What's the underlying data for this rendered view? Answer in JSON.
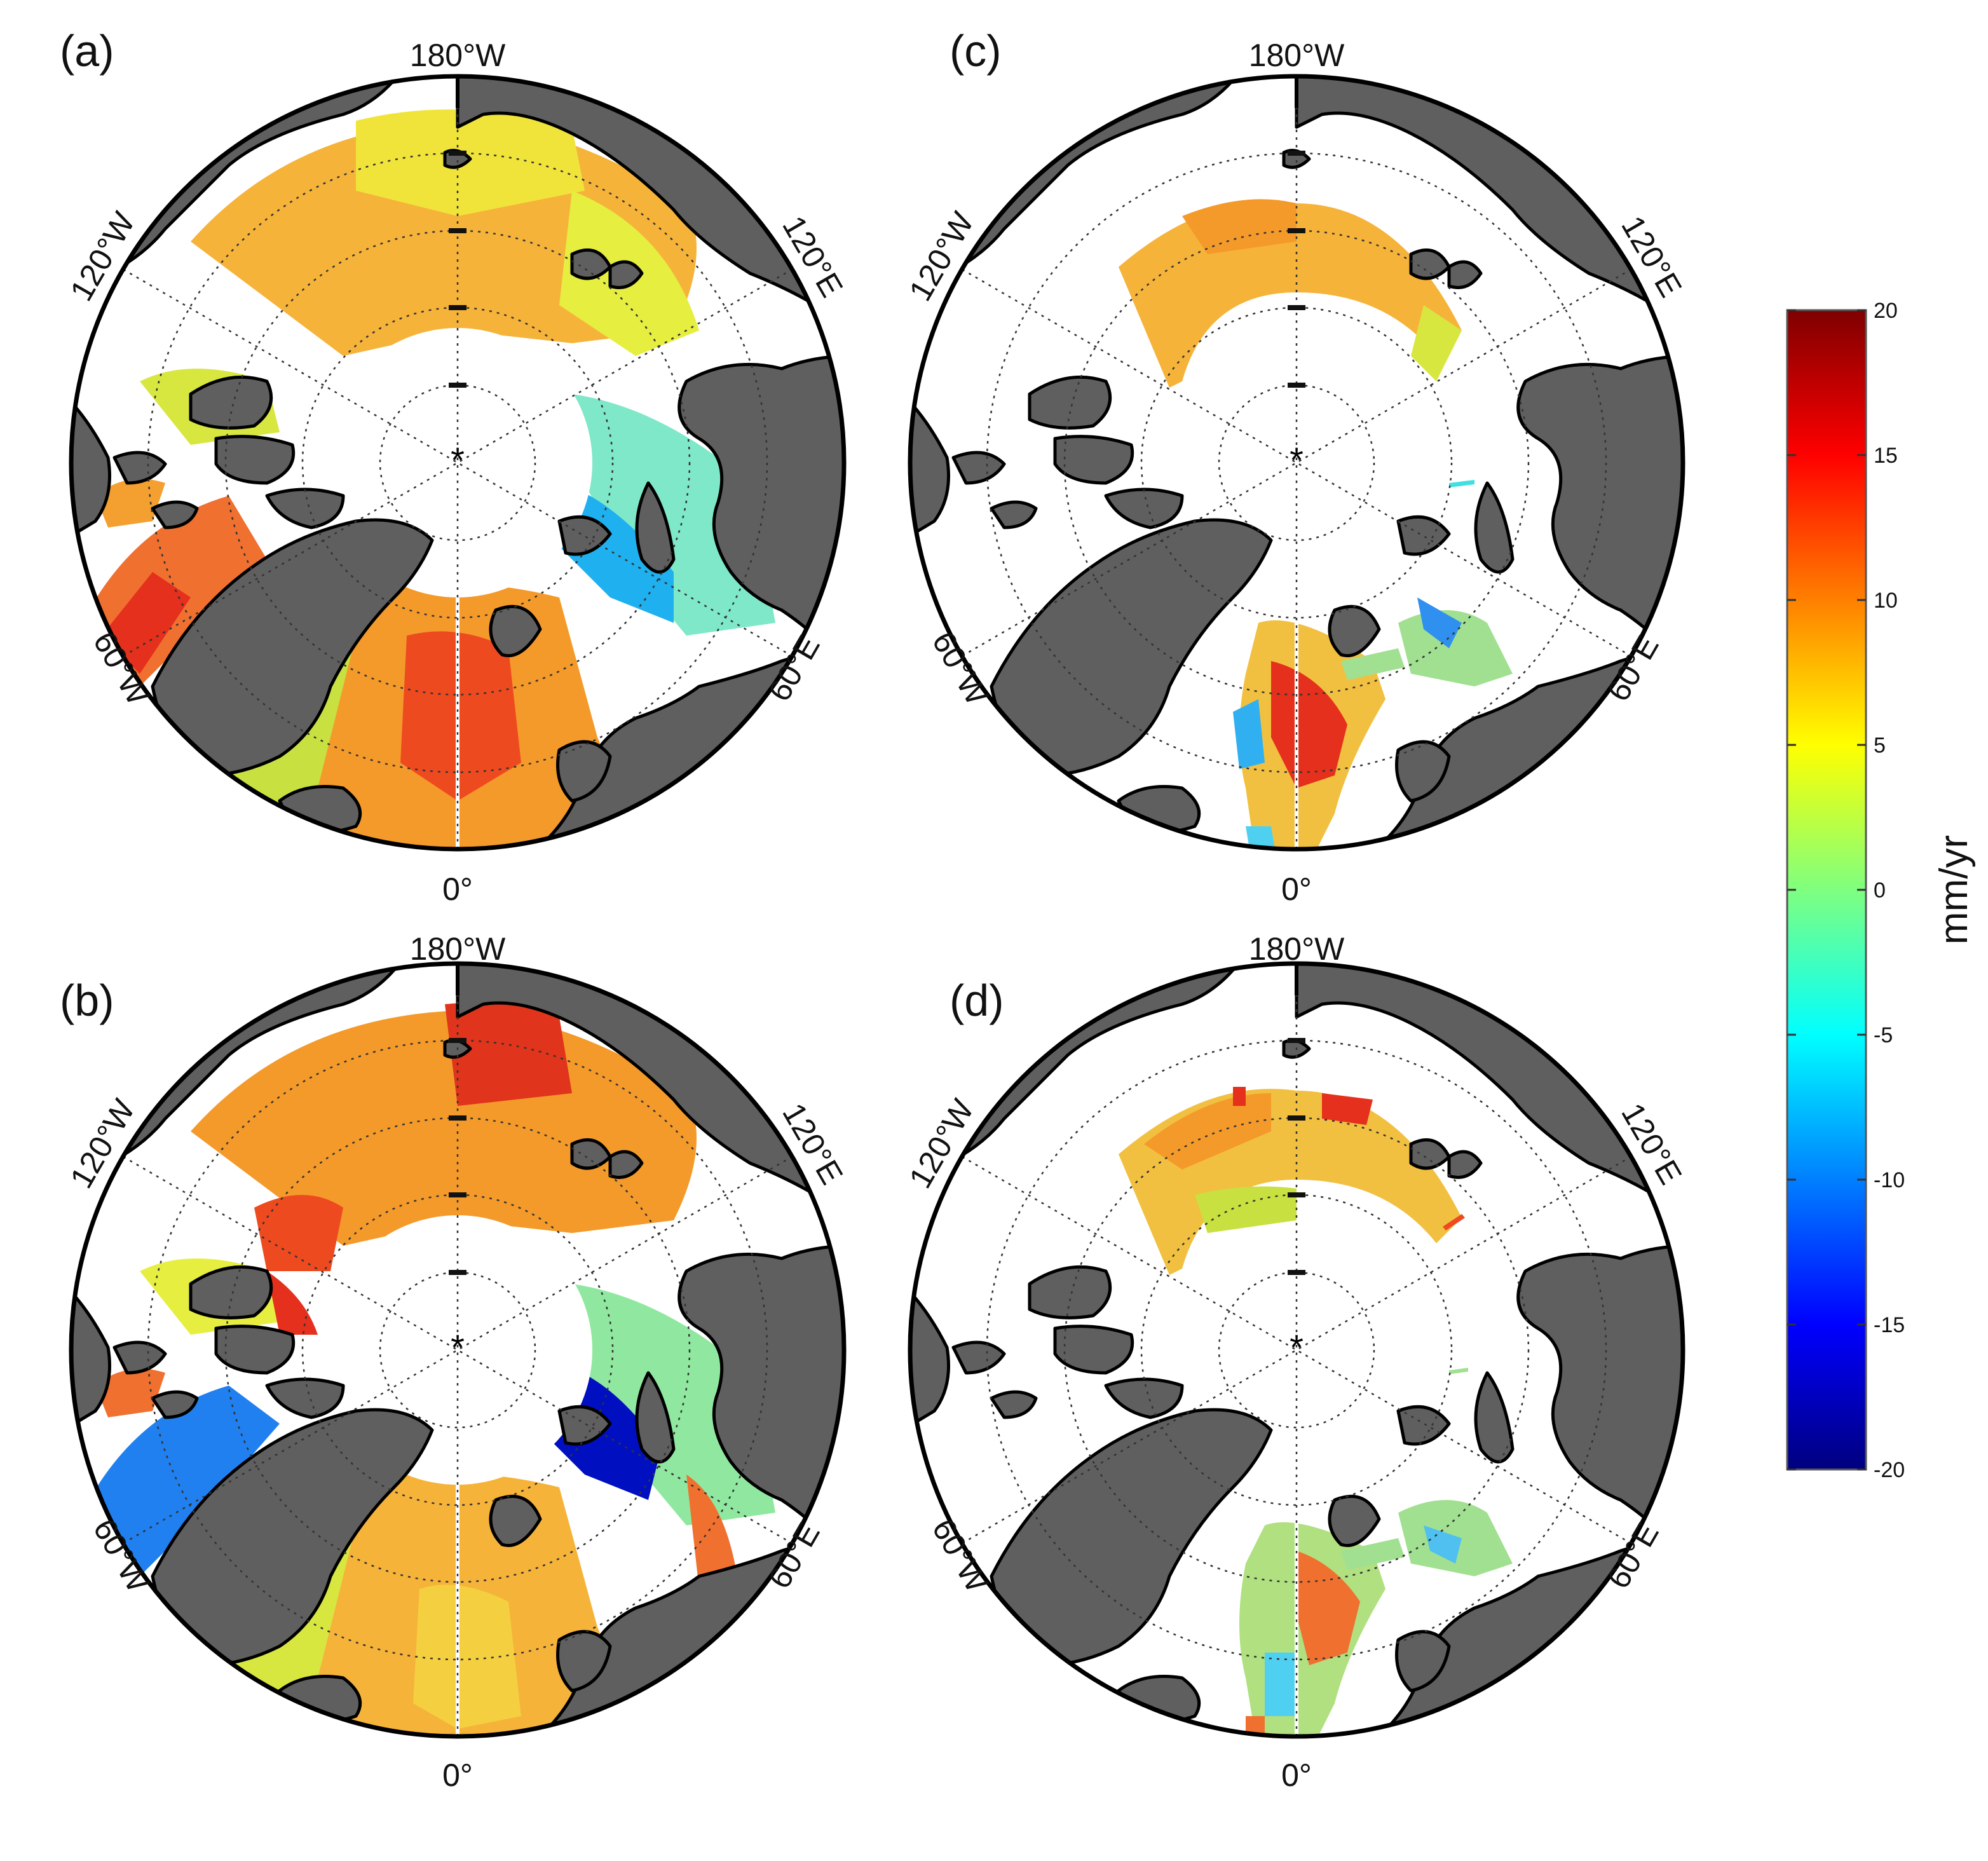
{
  "panels": [
    {
      "id": "a",
      "label": "(a)",
      "pole": "*",
      "lon_labels": {
        "top": "180°W",
        "bottom": "0°",
        "upper_left": "120°W",
        "upper_right": "120°E",
        "lower_left": "60°W",
        "lower_right": "60°E"
      }
    },
    {
      "id": "b",
      "label": "(b)",
      "pole": "*",
      "lon_labels": {
        "top": "180°W",
        "bottom": "0°",
        "upper_left": "120°W",
        "upper_right": "120°E",
        "lower_left": "60°W",
        "lower_right": "60°E"
      }
    },
    {
      "id": "c",
      "label": "(c)",
      "pole": "*",
      "lon_labels": {
        "top": "180°W",
        "bottom": "0°",
        "upper_left": "120°W",
        "upper_right": "120°E",
        "lower_left": "60°W",
        "lower_right": "60°E"
      }
    },
    {
      "id": "d",
      "label": "(d)",
      "pole": "*",
      "lon_labels": {
        "top": "180°W",
        "bottom": "0°",
        "upper_left": "120°W",
        "upper_right": "120°E",
        "lower_left": "60°W",
        "lower_right": "60°E"
      }
    }
  ],
  "colorbar": {
    "unit": "mm/yr",
    "min": -20,
    "max": 20,
    "ticks": [
      "20",
      "15",
      "10",
      "5",
      "0",
      "-5",
      "-10",
      "-15",
      "-20"
    ],
    "colormap": "jet"
  },
  "colors": {
    "land": "#5f5f5f",
    "coast": "#000000",
    "grid": "#333333"
  }
}
